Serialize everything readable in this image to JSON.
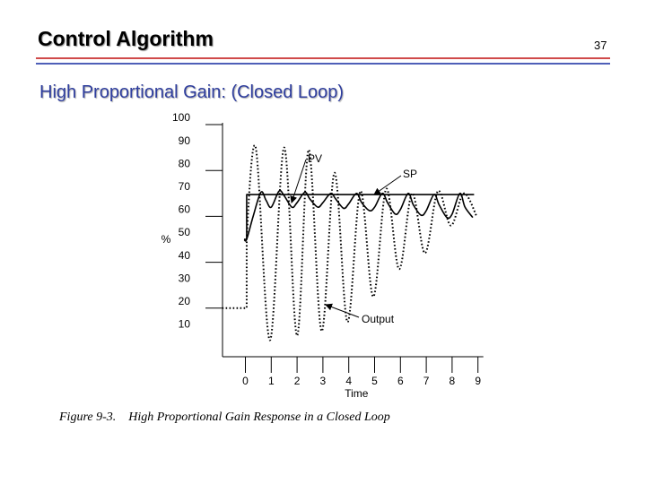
{
  "slide": {
    "title": "Control Algorithm",
    "page_number": "37",
    "subtitle": "High Proportional Gain: (Closed Loop)",
    "caption_label": "Figure 9-3.",
    "caption_text": "High Proportional Gain Response in a Closed Loop",
    "rule_colors": [
      "#d04a4a",
      "#4e5fb8"
    ]
  },
  "chart_data": {
    "type": "line",
    "xlabel": "Time",
    "ylabel": "%",
    "xlim": [
      -1.5,
      9.3
    ],
    "ylim": [
      0,
      100
    ],
    "x_ticks": [
      0,
      1,
      2,
      3,
      4,
      5,
      6,
      7,
      8,
      9
    ],
    "y_ticks": [
      10,
      20,
      30,
      40,
      50,
      60,
      70,
      80,
      90,
      100
    ],
    "annotations": [
      {
        "text": "PV",
        "series": "PV"
      },
      {
        "text": "SP",
        "series": "SP"
      },
      {
        "text": "Output",
        "series": "Output"
      }
    ],
    "series": [
      {
        "name": "SP",
        "style": "solid",
        "x": [
          -0.05,
          0.05,
          0.05,
          8.85
        ],
        "y": [
          50,
          50,
          69.5,
          69.5
        ]
      },
      {
        "name": "PV",
        "style": "solid",
        "x": [
          -0.05,
          0.05,
          0.3,
          0.6,
          0.8,
          1.0,
          1.3,
          1.5,
          1.8,
          2.0,
          2.3,
          2.5,
          2.8,
          3.0,
          3.3,
          3.5,
          3.8,
          4.0,
          4.3,
          4.5,
          4.8,
          5.0,
          5.3,
          5.5,
          5.8,
          6.0,
          6.3,
          6.5,
          6.8,
          7.0,
          7.3,
          7.5,
          7.8,
          8.0,
          8.3,
          8.5,
          8.8
        ],
        "y": [
          50,
          50,
          60,
          70.5,
          67,
          64,
          71,
          69,
          64,
          66,
          70.5,
          67.5,
          64,
          66,
          70,
          67.5,
          63.5,
          65.5,
          70,
          66,
          62.5,
          64,
          70,
          66,
          61,
          63,
          70,
          65,
          60.5,
          62.5,
          69.5,
          65,
          59.5,
          61,
          70,
          64,
          59.5
        ]
      },
      {
        "name": "Output",
        "style": "dotted",
        "x": [
          -0.9,
          0.05,
          0.05,
          0.4,
          0.95,
          1.5,
          2.0,
          2.45,
          2.95,
          3.45,
          3.95,
          4.45,
          4.95,
          5.45,
          5.95,
          6.45,
          6.95,
          7.45,
          7.95,
          8.45,
          8.95
        ],
        "y": [
          20,
          20,
          50,
          90,
          6,
          90,
          8,
          89,
          10,
          79,
          14,
          71,
          25,
          72,
          37,
          70,
          44,
          71,
          56,
          70,
          60
        ]
      }
    ]
  }
}
